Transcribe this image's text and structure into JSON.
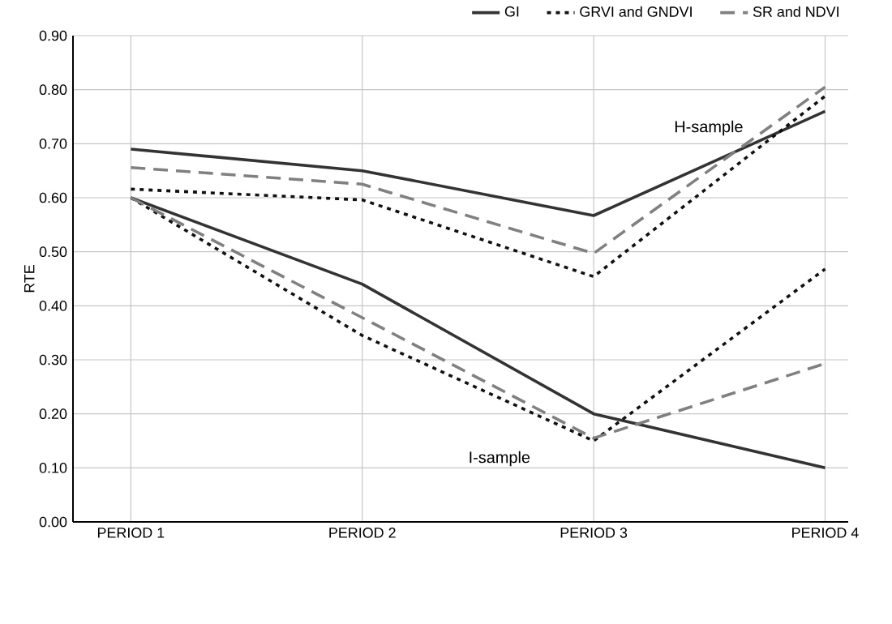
{
  "chart_data": {
    "type": "line",
    "ylabel": "RTE",
    "categories": [
      "PERIOD 1",
      "PERIOD 2",
      "PERIOD 3",
      "PERIOD 4"
    ],
    "ylim": [
      0,
      0.9
    ],
    "yticks": [
      {
        "value": 0,
        "label": "0.00"
      },
      {
        "value": 0.1,
        "label": "0.10"
      },
      {
        "value": 0.2,
        "label": "0.20"
      },
      {
        "value": 0.3,
        "label": "0.30"
      },
      {
        "value": 0.4,
        "label": "0.40"
      },
      {
        "value": 0.5,
        "label": "0.50"
      },
      {
        "value": 0.6,
        "label": "0.60"
      },
      {
        "value": 0.7,
        "label": "0.70"
      },
      {
        "value": 0.8,
        "label": "0.80"
      },
      {
        "value": 0.9,
        "label": "0.90"
      }
    ],
    "grid": true,
    "legend": "top right",
    "marker": "none",
    "series": [
      {
        "name": "GI",
        "color": "#333333",
        "line_style": "solid",
        "values": [
          0.69,
          0.65,
          0.567,
          0.76
        ]
      },
      {
        "name": "GRVI and GNDVI",
        "color": "#111111",
        "line_style": "dotted",
        "values": [
          0.616,
          0.596,
          0.454,
          0.788
        ]
      },
      {
        "name": "SR and NDVI",
        "color": "#808080",
        "line_style": "dashed",
        "values": [
          0.656,
          0.625,
          0.497,
          0.805
        ]
      },
      {
        "color": "#333333",
        "line_style": "solid",
        "values": [
          0.6,
          0.44,
          0.2,
          0.1
        ]
      },
      {
        "color": "#111111",
        "line_style": "dotted",
        "values": [
          0.6,
          0.345,
          0.15,
          0.468
        ]
      },
      {
        "color": "#808080",
        "line_style": "dashed",
        "values": [
          0.6,
          0.378,
          0.155,
          0.293
        ]
      }
    ],
    "annotations": [
      "H-sample",
      "I-sample"
    ]
  }
}
